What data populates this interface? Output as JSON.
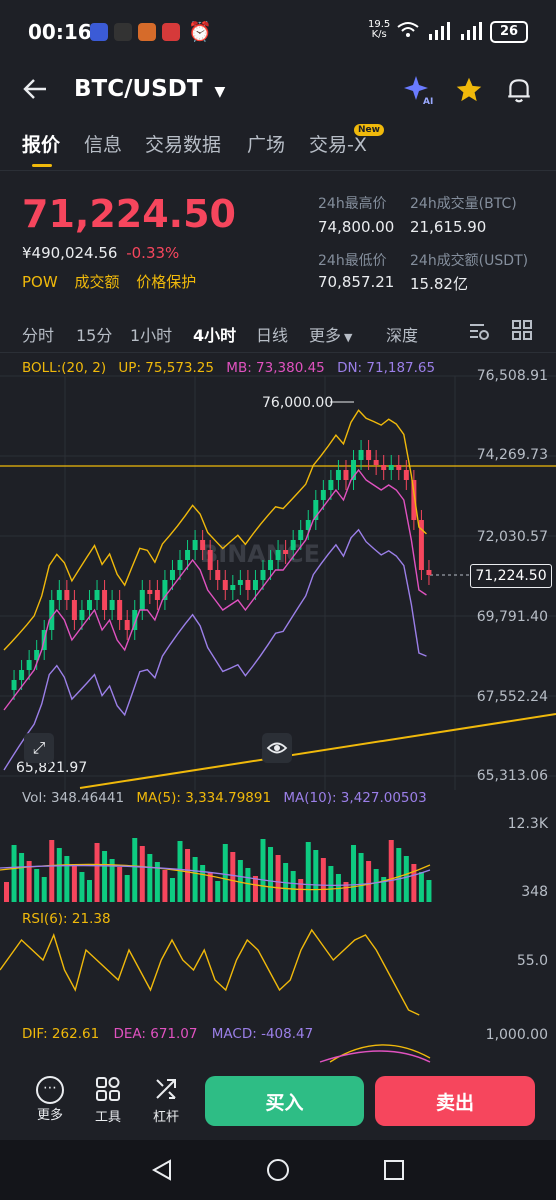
{
  "status": {
    "time": "00:16",
    "net_speed_top": "19.5",
    "net_speed_bottom": "K/s",
    "battery": "26"
  },
  "header": {
    "pair": "BTC/USDT"
  },
  "tabs": [
    {
      "label": "报价"
    },
    {
      "label": "信息"
    },
    {
      "label": "交易数据"
    },
    {
      "label": "广场"
    },
    {
      "label": "交易-X"
    }
  ],
  "tab_badge": "New",
  "quote": {
    "price": "71,224.50",
    "cny": "¥490,024.56",
    "change": "-0.33%",
    "tags": [
      "POW",
      "成交额",
      "价格保护"
    ],
    "high_label": "24h最高价",
    "high": "74,800.00",
    "vol_btc_label": "24h成交量(BTC)",
    "vol_btc": "21,615.90",
    "low_label": "24h最低价",
    "low": "70,857.21",
    "vol_usdt_label": "24h成交额(USDT)",
    "vol_usdt": "15.82亿"
  },
  "timeframes": [
    "分时",
    "15分",
    "1小时",
    "4小时",
    "日线",
    "更多",
    "深度"
  ],
  "boll": {
    "label": "BOLL:(20, 2)",
    "up": "UP: 75,573.25",
    "mb": "MB: 73,380.45",
    "dn": "DN: 71,187.65"
  },
  "price_axis": [
    "76,508.91",
    "74,269.73",
    "72,030.57",
    "69,791.40",
    "67,552.24",
    "65,313.06"
  ],
  "annotations": {
    "high_mark": "76,000.00",
    "low_mark": "65,821.97",
    "current": "71,224.50"
  },
  "watermark": "BINANCE",
  "volume": {
    "vol": "Vol: 348.46441",
    "ma5": "MA(5): 3,334.79891",
    "ma10": "MA(10): 3,427.00503",
    "axis_top": "12.3K",
    "axis_bottom": "348"
  },
  "rsi": {
    "label": "RSI(6): 21.38",
    "axis": "55.0"
  },
  "macd": {
    "dif": "DIF: 262.61",
    "dea": "DEA: 671.07",
    "macd": "MACD: -408.47",
    "axis": "1,000.00"
  },
  "bottom": {
    "more": "更多",
    "tools": "工具",
    "leverage": "杠杆",
    "buy": "买入",
    "sell": "卖出"
  },
  "colors": {
    "up": "#0ecb81",
    "down": "#f6465d",
    "accent": "#f0b90b",
    "bg": "#1e2026"
  }
}
